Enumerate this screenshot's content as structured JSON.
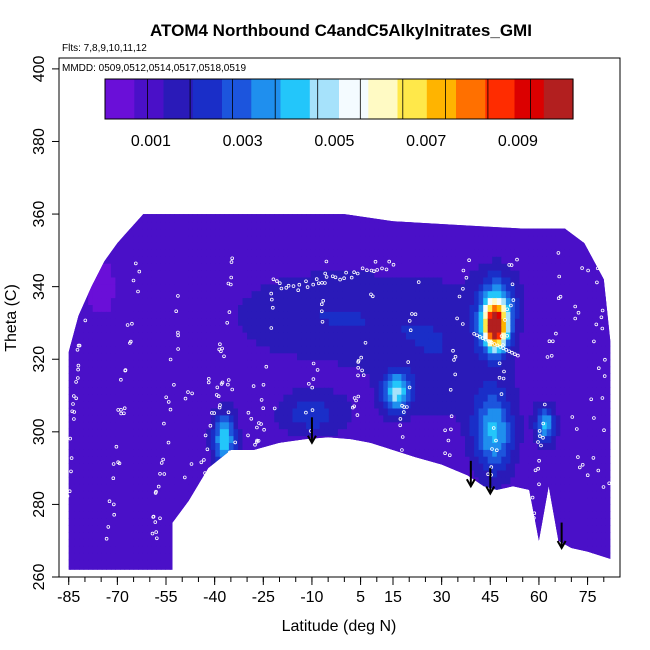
{
  "chart_data": {
    "type": "heatmap",
    "title": "ATOM4 Northbound C4andC5Alkylnitrates_GMI",
    "flights_label": "Flts: 7,8,9,10,11,12",
    "dates_label": "MMDD: 0509,0512,0514,0517,0518,0519",
    "xlabel": "Latitude (deg N)",
    "ylabel": "Theta (C)",
    "xlim": [
      -88,
      85
    ],
    "ylim": [
      260,
      403
    ],
    "x_ticks": [
      -85,
      -70,
      -55,
      -40,
      -25,
      -10,
      5,
      15,
      30,
      45,
      60,
      75
    ],
    "x_tick_labels": [
      "-85",
      "-70",
      "-55",
      "-40",
      "-25",
      "-10",
      "5",
      "15",
      "30",
      "45",
      "60",
      "75"
    ],
    "y_ticks": [
      260,
      280,
      300,
      320,
      340,
      360,
      380,
      400
    ],
    "y_tick_labels": [
      "260",
      "280",
      "300",
      "320",
      "340",
      "360",
      "380",
      "400"
    ],
    "colorbar": {
      "range": [
        0,
        0.0102
      ],
      "ticks": [
        0.001,
        0.003,
        0.005,
        0.007,
        0.009
      ],
      "tick_labels": [
        "0.001",
        "0.003",
        "0.005",
        "0.007",
        "0.009"
      ],
      "placement": "top-inside"
    },
    "colormap": [
      "#6a0fd8",
      "#4a10c8",
      "#2a1ab8",
      "#1a2ec8",
      "#1c55dd",
      "#1f8fee",
      "#23c6fa",
      "#a6e2fb",
      "#f4fbff",
      "#fffac4",
      "#ffe84a",
      "#ffb400",
      "#ff7000",
      "#ff2c00",
      "#db0000",
      "#b21f1f"
    ],
    "regions": [
      {
        "name": "background",
        "lat_range": [
          -85,
          82
        ],
        "theta_range": [
          262,
          360
        ],
        "value": 0.0009
      },
      {
        "name": "tropical-upper",
        "lat_range": [
          -30,
          40
        ],
        "theta_range": [
          315,
          345
        ],
        "value": 0.0016
      },
      {
        "name": "plume-southern",
        "lat_range": [
          -41,
          -33
        ],
        "theta_range": [
          291,
          307
        ],
        "value": 0.0044
      },
      {
        "name": "plume-equatorial",
        "lat_range": [
          12,
          20
        ],
        "theta_range": [
          306,
          316
        ],
        "value": 0.0046
      },
      {
        "name": "plume-northern-core",
        "lat_range": [
          40,
          52
        ],
        "theta_range": [
          318,
          340
        ],
        "value": 0.0075
      },
      {
        "name": "plume-northern-peak",
        "lat_range": [
          44,
          49
        ],
        "theta_range": [
          325,
          333
        ],
        "value": 0.0095
      },
      {
        "name": "plume-northern-low",
        "lat_range": [
          40,
          57
        ],
        "theta_range": [
          288,
          312
        ],
        "value": 0.0042
      },
      {
        "name": "plume-arctic",
        "lat_range": [
          60,
          66
        ],
        "theta_range": [
          298,
          306
        ],
        "value": 0.0045
      }
    ],
    "surface_boundary": {
      "lat": [
        -53,
        -48,
        -42,
        -35,
        -28,
        -20,
        -12,
        -5,
        2,
        8,
        15,
        22,
        30,
        38,
        43,
        47,
        52,
        57,
        60,
        63,
        66,
        70,
        75,
        82
      ],
      "theta": [
        275,
        281,
        290,
        295,
        295,
        297,
        298,
        298.5,
        298,
        297,
        295,
        293,
        291,
        288,
        285,
        284,
        285,
        284,
        270,
        285,
        270,
        268,
        267,
        265
      ]
    },
    "flight_markers": {
      "color": "white",
      "shape": "open-circle"
    },
    "arrows": [
      {
        "lat": -10,
        "theta_top": 304,
        "theta_bottom": 297
      },
      {
        "lat": 39,
        "theta_top": 292,
        "theta_bottom": 285
      },
      {
        "lat": 45,
        "theta_top": 290,
        "theta_bottom": 283
      },
      {
        "lat": 67,
        "theta_top": 275,
        "theta_bottom": 268
      }
    ]
  }
}
